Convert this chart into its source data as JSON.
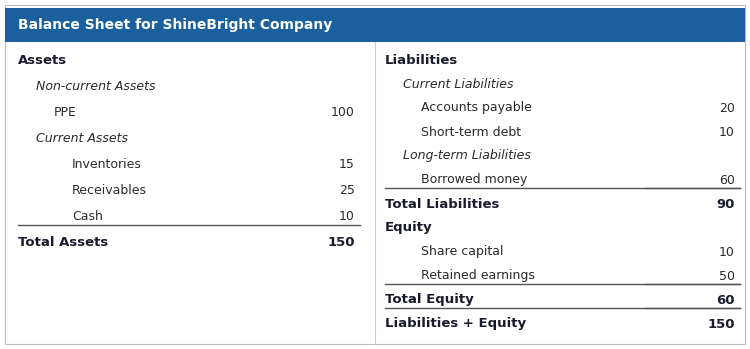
{
  "title": "Balance Sheet for ShineBright Company",
  "header_bg": "#1a5f9e",
  "header_text_color": "#ffffff",
  "body_bg": "#ffffff",
  "text_color": "#2a2a2a",
  "line_color": "#555555",
  "left_section": {
    "header": "Assets",
    "rows": [
      {
        "label": "Non-current Assets",
        "value": null,
        "indent": 1,
        "style": "italic"
      },
      {
        "label": "PPE",
        "value": "100",
        "indent": 2,
        "style": "normal"
      },
      {
        "label": "Current Assets",
        "value": null,
        "indent": 1,
        "style": "italic"
      },
      {
        "label": "Inventories",
        "value": "15",
        "indent": 3,
        "style": "normal"
      },
      {
        "label": "Receivables",
        "value": "25",
        "indent": 3,
        "style": "normal"
      },
      {
        "label": "Cash",
        "value": "10",
        "indent": 3,
        "style": "normal"
      },
      {
        "label": "Total Assets",
        "value": "150",
        "indent": 0,
        "style": "bold",
        "line_above": true
      }
    ]
  },
  "right_section": {
    "header": "Liabilities",
    "rows": [
      {
        "label": "Current Liabilities",
        "value": null,
        "indent": 1,
        "style": "italic"
      },
      {
        "label": "Accounts payable",
        "value": "20",
        "indent": 2,
        "style": "normal"
      },
      {
        "label": "Short-term debt",
        "value": "10",
        "indent": 2,
        "style": "normal"
      },
      {
        "label": "Long-term Liabilities",
        "value": null,
        "indent": 1,
        "style": "italic"
      },
      {
        "label": "Borrowed money",
        "value": "60",
        "indent": 2,
        "style": "normal",
        "line_below": true
      },
      {
        "label": "Total Liabilities",
        "value": "90",
        "indent": 0,
        "style": "bold",
        "line_above": true
      },
      {
        "label": "Equity",
        "value": null,
        "indent": 0,
        "style": "bold"
      },
      {
        "label": "Share capital",
        "value": "10",
        "indent": 2,
        "style": "normal"
      },
      {
        "label": "Retained earnings",
        "value": "50",
        "indent": 2,
        "style": "normal",
        "line_below": true
      },
      {
        "label": "Total Equity",
        "value": "60",
        "indent": 0,
        "style": "bold",
        "line_above": true
      },
      {
        "label": "Liabilities + Equity",
        "value": "150",
        "indent": 0,
        "style": "bold",
        "line_above": true
      }
    ]
  },
  "figsize": [
    7.5,
    3.49
  ],
  "dpi": 100
}
